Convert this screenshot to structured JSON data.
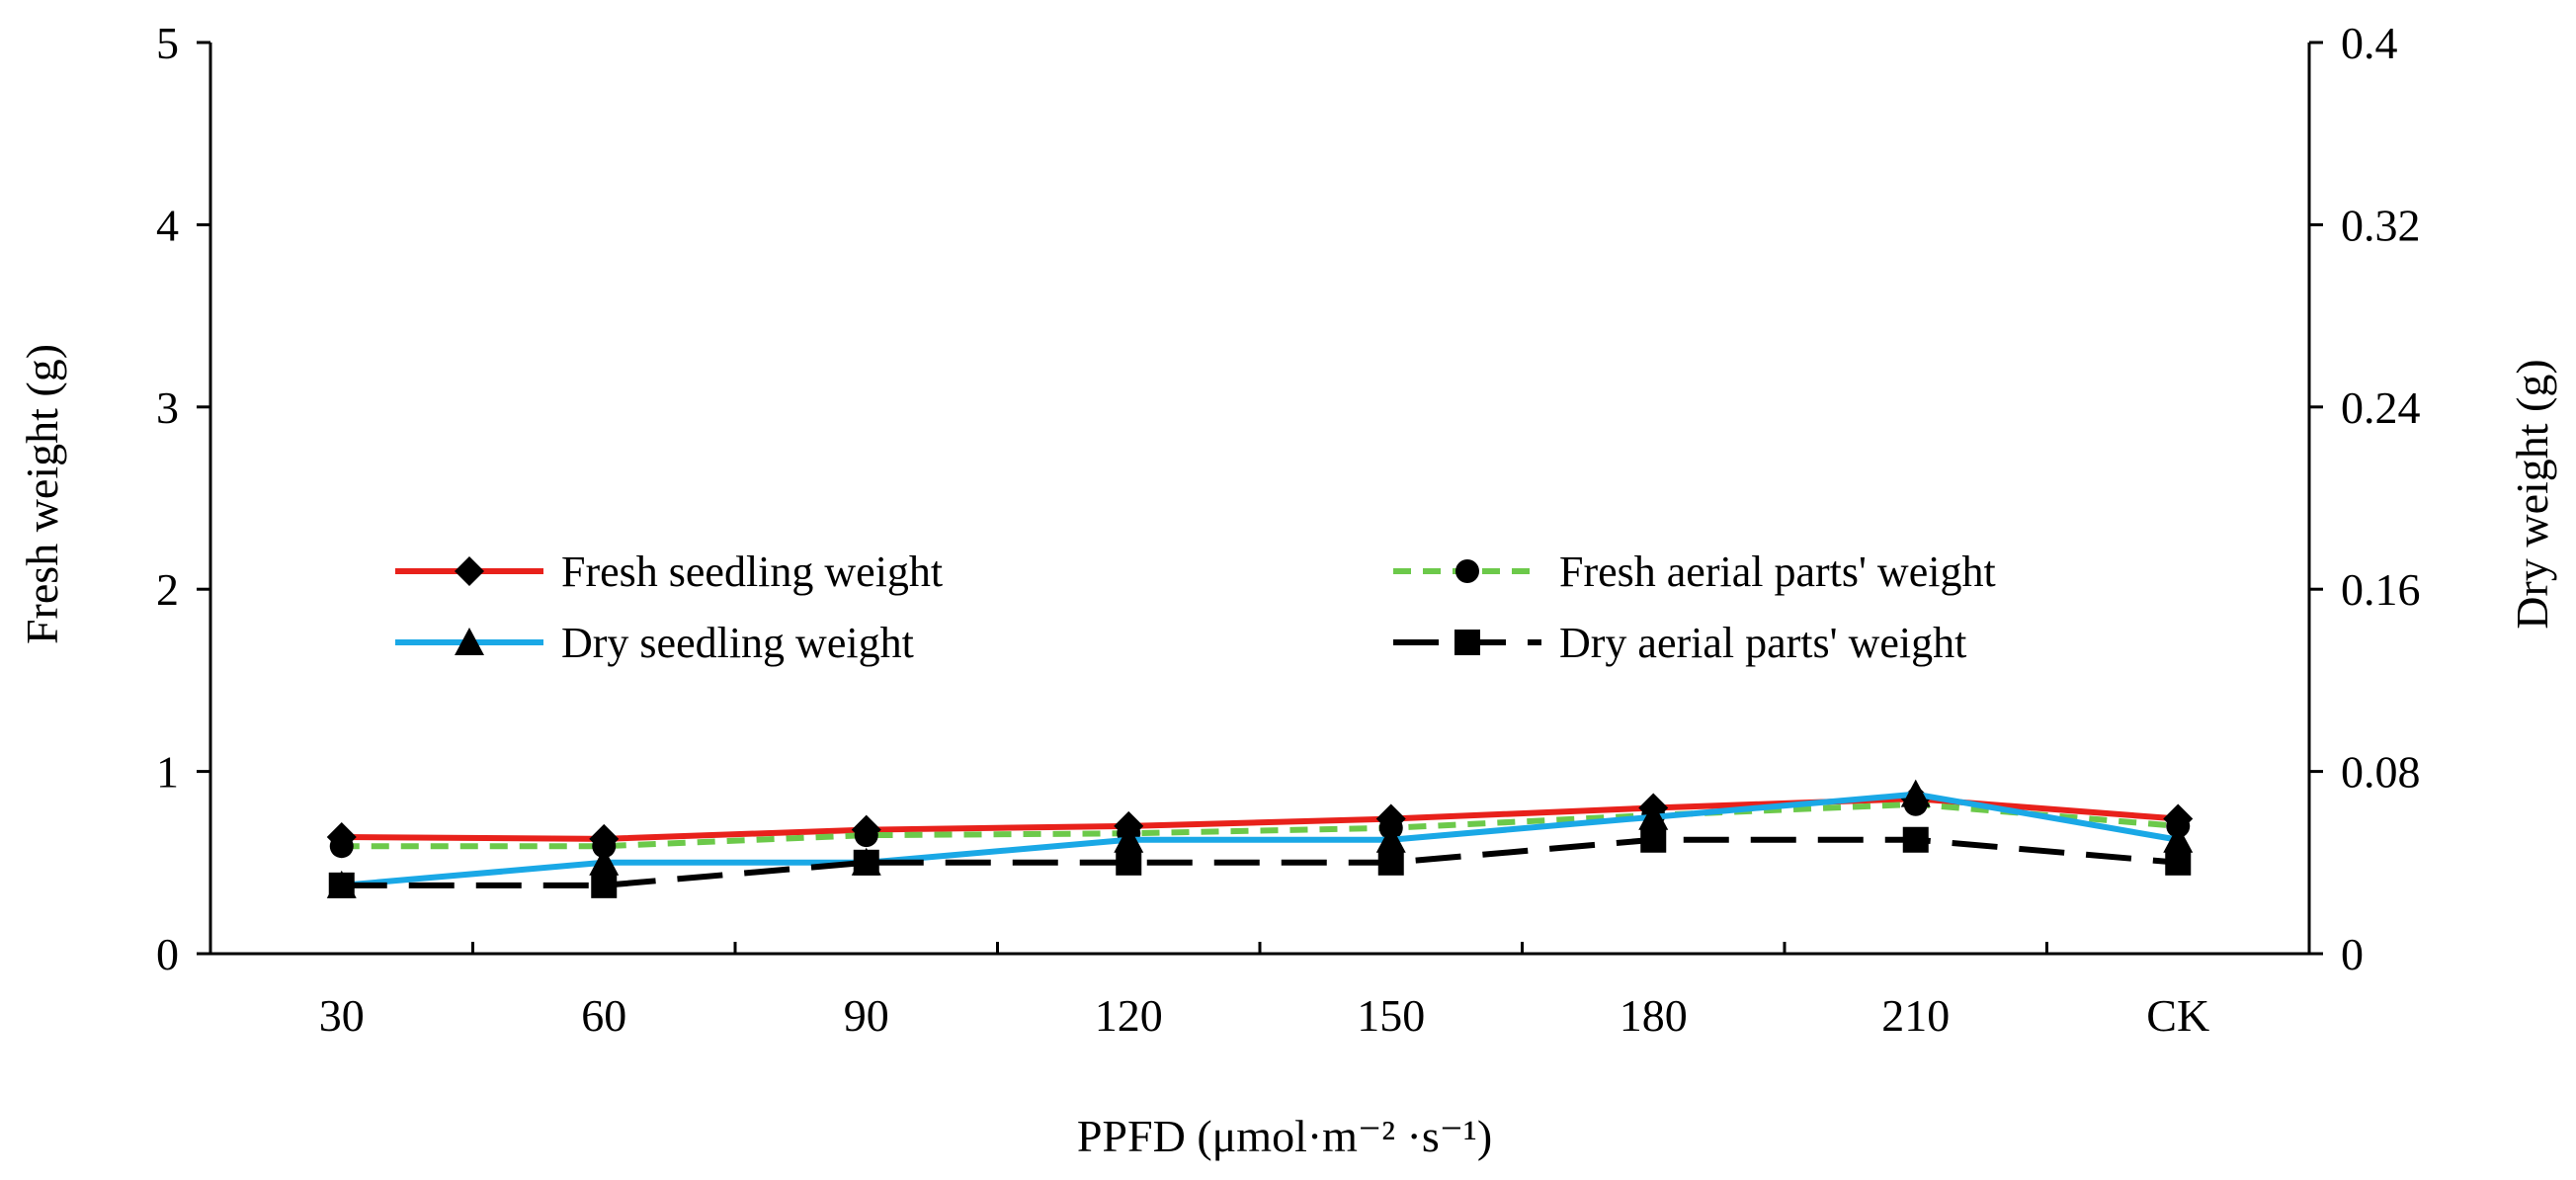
{
  "chart_data": {
    "type": "line",
    "categories": [
      "30",
      "60",
      "90",
      "120",
      "150",
      "180",
      "210",
      "CK"
    ],
    "xlabel": "PPFD (μmol·m⁻² ·s⁻¹)",
    "ylabel_left": "Fresh weight (g)",
    "ylabel_right": "Dry weight (g)",
    "ylim_left": [
      0,
      5
    ],
    "ylim_right": [
      0,
      0.4
    ],
    "yticks_left": [
      "0",
      "1",
      "2",
      "3",
      "4",
      "5"
    ],
    "yticks_right": [
      "0",
      "0.08",
      "0.16",
      "0.24",
      "0.32",
      "0.4"
    ],
    "series": [
      {
        "name": "Fresh seedling weight",
        "axis": "left",
        "color": "#e8211b",
        "marker": "diamond",
        "dash": "solid",
        "values": [
          0.64,
          0.63,
          0.68,
          0.7,
          0.74,
          0.8,
          0.85,
          0.74
        ]
      },
      {
        "name": "Fresh aerial parts' weight",
        "axis": "left",
        "color": "#6cc94a",
        "marker": "circle",
        "dash": "dashed",
        "values": [
          0.59,
          0.59,
          0.65,
          0.66,
          0.69,
          0.76,
          0.82,
          0.7
        ]
      },
      {
        "name": "Dry seedling weight",
        "axis": "right",
        "color": "#1aa8e6",
        "marker": "triangle",
        "dash": "solid",
        "values": [
          0.03,
          0.04,
          0.04,
          0.05,
          0.05,
          0.06,
          0.07,
          0.05
        ]
      },
      {
        "name": "Dry aerial parts' weight",
        "axis": "right",
        "color": "#000000",
        "marker": "square",
        "dash": "longdash",
        "values": [
          0.03,
          0.03,
          0.04,
          0.04,
          0.04,
          0.05,
          0.05,
          0.04
        ]
      }
    ],
    "legend": "center-left"
  }
}
